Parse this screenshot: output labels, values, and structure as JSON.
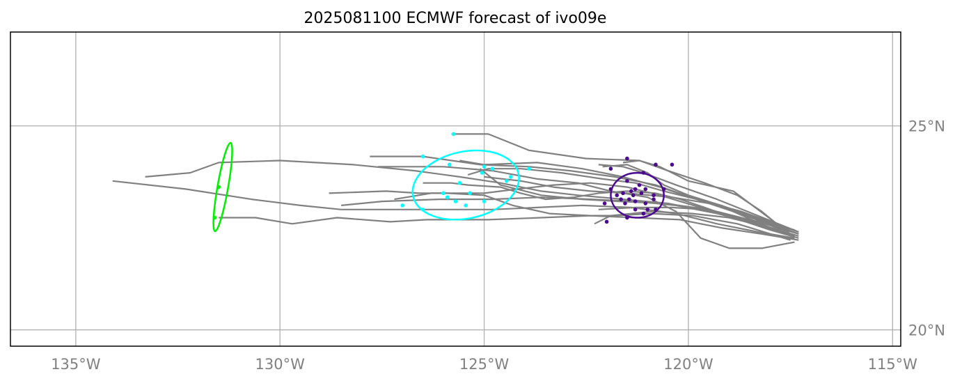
{
  "chart_data": {
    "type": "scatter",
    "title": "2025081100 ECMWF forecast of ivo09e",
    "xlabel": "",
    "ylabel": "",
    "xlim": [
      -136.6,
      -114.8
    ],
    "ylim": [
      19.6,
      27.3
    ],
    "grid": true,
    "x_ticks": [
      {
        "value": -135,
        "label": "135°W"
      },
      {
        "value": -130,
        "label": "130°W"
      },
      {
        "value": -125,
        "label": "125°W"
      },
      {
        "value": -120,
        "label": "120°W"
      },
      {
        "value": -115,
        "label": "115°W"
      }
    ],
    "y_ticks": [
      {
        "value": 25,
        "label": "25°N"
      },
      {
        "value": 20,
        "label": "20°N"
      }
    ],
    "colors": {
      "track": "#808080",
      "day1": "#4b0a8f",
      "day2": "#00ffff",
      "day3": "#00ee00",
      "grid": "#b0b0b0",
      "frame": "#000000"
    },
    "ellipses": [
      {
        "cx": -121.25,
        "cy": 23.3,
        "rx": 0.65,
        "ry": 0.55,
        "angle": 0,
        "color": "#4b0a8f"
      },
      {
        "cx": -125.45,
        "cy": 23.55,
        "rx": 1.32,
        "ry": 0.82,
        "angle": -12,
        "color": "#00ffff"
      },
      {
        "cx": -131.4,
        "cy": 23.5,
        "rx": 0.13,
        "ry": 1.1,
        "angle": 10,
        "color": "#00ee00"
      }
    ],
    "tracks": [
      [
        [
          -117.3,
          22.35
        ],
        [
          -117.8,
          22.5
        ],
        [
          -118.5,
          22.7
        ],
        [
          -119.5,
          22.9
        ],
        [
          -120.5,
          23.1
        ],
        [
          -121.6,
          23.2
        ],
        [
          -122.7,
          23.3
        ],
        [
          -123.6,
          23.4
        ],
        [
          -124.6,
          23.6
        ],
        [
          -125.6,
          23.75
        ],
        [
          -126.7,
          23.9
        ],
        [
          -128.2,
          24.05
        ],
        [
          -130.0,
          24.15
        ],
        [
          -131.5,
          24.1
        ],
        [
          -132.2,
          23.85
        ],
        [
          -133.3,
          23.75
        ]
      ],
      [
        [
          -117.4,
          22.25
        ],
        [
          -118.3,
          22.4
        ],
        [
          -119.3,
          22.6
        ],
        [
          -120.3,
          22.85
        ],
        [
          -121.4,
          23.0
        ],
        [
          -122.6,
          23.05
        ],
        [
          -123.7,
          23.0
        ],
        [
          -124.8,
          22.95
        ],
        [
          -126.0,
          22.95
        ],
        [
          -127.3,
          22.95
        ],
        [
          -128.5,
          22.95
        ],
        [
          -129.5,
          23.05
        ],
        [
          -130.7,
          23.2
        ],
        [
          -132.3,
          23.45
        ],
        [
          -134.1,
          23.65
        ]
      ],
      [
        [
          -117.3,
          22.2
        ],
        [
          -118.2,
          22.35
        ],
        [
          -119.2,
          22.5
        ],
        [
          -120.2,
          22.7
        ],
        [
          -121.3,
          22.75
        ],
        [
          -122.4,
          22.8
        ],
        [
          -123.6,
          22.75
        ],
        [
          -124.9,
          22.7
        ],
        [
          -126.4,
          22.7
        ],
        [
          -127.3,
          22.65
        ],
        [
          -128.6,
          22.75
        ],
        [
          -129.7,
          22.6
        ],
        [
          -130.6,
          22.75
        ],
        [
          -131.5,
          22.75
        ]
      ],
      [
        [
          -117.4,
          22.3
        ],
        [
          -118.0,
          22.5
        ],
        [
          -118.9,
          22.9
        ],
        [
          -119.8,
          23.2
        ],
        [
          -120.8,
          23.55
        ],
        [
          -121.8,
          23.75
        ],
        [
          -122.9,
          23.9
        ],
        [
          -123.9,
          24.0
        ],
        [
          -125.1,
          24.05
        ],
        [
          -126.5,
          24.25
        ],
        [
          -127.8,
          24.25
        ]
      ],
      [
        [
          -117.6,
          22.4
        ],
        [
          -118.2,
          22.9
        ],
        [
          -118.8,
          23.3
        ],
        [
          -119.6,
          23.6
        ],
        [
          -120.5,
          23.9
        ],
        [
          -121.2,
          24.15
        ],
        [
          -122.5,
          24.2
        ],
        [
          -123.9,
          24.4
        ],
        [
          -124.9,
          24.8
        ],
        [
          -125.8,
          24.8
        ]
      ],
      [
        [
          -117.4,
          22.15
        ],
        [
          -118.2,
          22.0
        ],
        [
          -119.0,
          22.0
        ],
        [
          -119.7,
          22.25
        ],
        [
          -120.3,
          22.9
        ],
        [
          -121.0,
          23.25
        ],
        [
          -121.9,
          23.4
        ],
        [
          -122.7,
          23.6
        ],
        [
          -123.7,
          23.7
        ],
        [
          -124.8,
          23.9
        ],
        [
          -126.0,
          24.0
        ],
        [
          -127.6,
          24.0
        ]
      ],
      [
        [
          -117.5,
          22.2
        ],
        [
          -118.8,
          22.6
        ],
        [
          -119.9,
          22.8
        ],
        [
          -120.9,
          22.85
        ],
        [
          -121.8,
          22.8
        ],
        [
          -122.4,
          22.8
        ],
        [
          -123.4,
          22.85
        ],
        [
          -124.3,
          23.05
        ],
        [
          -125.0,
          23.3
        ],
        [
          -125.9,
          23.35
        ],
        [
          -126.6,
          23.35
        ],
        [
          -127.4,
          23.4
        ],
        [
          -128.8,
          23.35
        ]
      ],
      [
        [
          -117.3,
          22.3
        ],
        [
          -118.3,
          22.6
        ],
        [
          -119.3,
          22.85
        ],
        [
          -120.3,
          23.05
        ],
        [
          -121.3,
          23.15
        ],
        [
          -122.4,
          23.2
        ],
        [
          -123.6,
          23.25
        ],
        [
          -124.8,
          23.2
        ],
        [
          -126.1,
          23.2
        ],
        [
          -127.5,
          23.15
        ],
        [
          -128.5,
          23.05
        ]
      ],
      [
        [
          -117.4,
          22.45
        ],
        [
          -118.5,
          22.7
        ],
        [
          -119.7,
          23.0
        ],
        [
          -120.7,
          23.3
        ],
        [
          -121.5,
          23.5
        ],
        [
          -122.4,
          23.6
        ],
        [
          -123.3,
          23.55
        ],
        [
          -124.2,
          23.45
        ],
        [
          -125.0,
          23.35
        ],
        [
          -126.3,
          23.35
        ],
        [
          -127.2,
          23.2
        ]
      ],
      [
        [
          -117.5,
          22.35
        ],
        [
          -118.9,
          23.4
        ],
        [
          -120.0,
          23.65
        ],
        [
          -120.7,
          24.0
        ],
        [
          -121.2,
          24.15
        ],
        [
          -121.6,
          24.1
        ]
      ],
      [
        [
          -117.3,
          22.4
        ],
        [
          -118.7,
          22.9
        ],
        [
          -119.8,
          23.2
        ],
        [
          -120.7,
          23.5
        ],
        [
          -121.6,
          23.75
        ],
        [
          -122.6,
          23.95
        ],
        [
          -123.7,
          24.1
        ],
        [
          -125.0,
          24.05
        ],
        [
          -125.6,
          24.15
        ]
      ],
      [
        [
          -117.3,
          22.35
        ],
        [
          -118.4,
          22.75
        ],
        [
          -119.2,
          23.05
        ],
        [
          -120.0,
          23.3
        ],
        [
          -120.6,
          23.55
        ],
        [
          -121.0,
          23.85
        ],
        [
          -121.5,
          24.05
        ],
        [
          -122.1,
          24.0
        ]
      ],
      [
        [
          -117.4,
          22.3
        ],
        [
          -118.2,
          22.55
        ],
        [
          -119.0,
          22.75
        ],
        [
          -119.9,
          22.85
        ],
        [
          -120.9,
          22.9
        ],
        [
          -121.9,
          22.8
        ],
        [
          -122.3,
          22.6
        ]
      ],
      [
        [
          -117.3,
          22.25
        ],
        [
          -118.0,
          22.45
        ],
        [
          -118.9,
          22.75
        ],
        [
          -119.6,
          23.0
        ],
        [
          -120.2,
          23.2
        ],
        [
          -120.8,
          23.35
        ],
        [
          -121.5,
          23.4
        ],
        [
          -122.2,
          23.35
        ],
        [
          -122.8,
          23.25
        ],
        [
          -123.5,
          23.2
        ],
        [
          -124.1,
          23.35
        ],
        [
          -124.6,
          23.5
        ],
        [
          -125.4,
          23.55
        ],
        [
          -125.8,
          23.6
        ],
        [
          -126.5,
          23.6
        ]
      ],
      [
        [
          -117.4,
          22.3
        ],
        [
          -118.2,
          22.65
        ],
        [
          -119.0,
          22.95
        ],
        [
          -119.8,
          23.2
        ],
        [
          -120.6,
          23.4
        ],
        [
          -121.3,
          23.6
        ],
        [
          -122.1,
          23.7
        ],
        [
          -123.1,
          23.85
        ],
        [
          -124.1,
          23.95
        ],
        [
          -124.9,
          23.95
        ],
        [
          -125.4,
          23.8
        ]
      ],
      [
        [
          -117.3,
          22.35
        ],
        [
          -118.2,
          22.7
        ],
        [
          -119.2,
          23.05
        ],
        [
          -120.4,
          23.25
        ],
        [
          -121.5,
          23.35
        ],
        [
          -122.4,
          23.4
        ],
        [
          -123.3,
          23.5
        ],
        [
          -124.1,
          23.65
        ],
        [
          -125.0,
          23.75
        ]
      ],
      [
        [
          -117.4,
          22.3
        ],
        [
          -118.4,
          22.65
        ],
        [
          -119.5,
          22.95
        ],
        [
          -120.6,
          23.1
        ],
        [
          -121.7,
          23.15
        ],
        [
          -122.6,
          23.2
        ],
        [
          -123.6,
          23.3
        ],
        [
          -124.6,
          23.55
        ],
        [
          -125.1,
          23.95
        ]
      ],
      [
        [
          -117.3,
          22.4
        ],
        [
          -118.3,
          22.8
        ],
        [
          -119.3,
          23.2
        ],
        [
          -120.3,
          23.55
        ],
        [
          -121.1,
          23.85
        ],
        [
          -121.6,
          24.0
        ],
        [
          -122.2,
          24.05
        ]
      ],
      [
        [
          -117.4,
          22.3
        ],
        [
          -118.0,
          22.5
        ],
        [
          -118.8,
          22.75
        ],
        [
          -119.6,
          22.95
        ],
        [
          -120.4,
          23.0
        ],
        [
          -121.3,
          23.0
        ],
        [
          -122.2,
          22.95
        ]
      ]
    ],
    "points_day1": [
      [
        -121.5,
        24.2
      ],
      [
        -121.9,
        23.95
      ],
      [
        -121.1,
        23.85
      ],
      [
        -120.8,
        24.05
      ],
      [
        -120.4,
        24.05
      ],
      [
        -121.5,
        23.65
      ],
      [
        -121.2,
        23.55
      ],
      [
        -121.05,
        23.45
      ],
      [
        -120.6,
        23.45
      ],
      [
        -121.9,
        23.45
      ],
      [
        -121.4,
        23.4
      ],
      [
        -121.3,
        23.45
      ],
      [
        -121.6,
        23.35
      ],
      [
        -121.75,
        23.3
      ],
      [
        -121.35,
        23.3
      ],
      [
        -121.15,
        23.35
      ],
      [
        -120.85,
        23.3
      ],
      [
        -121.45,
        23.2
      ],
      [
        -121.3,
        23.15
      ],
      [
        -121.55,
        23.1
      ],
      [
        -121.05,
        23.1
      ],
      [
        -120.85,
        23.2
      ],
      [
        -121.65,
        23.2
      ],
      [
        -122.05,
        23.1
      ],
      [
        -121.3,
        22.95
      ],
      [
        -121.0,
        22.95
      ],
      [
        -120.8,
        22.95
      ],
      [
        -121.1,
        22.85
      ],
      [
        -121.5,
        22.75
      ],
      [
        -122.0,
        22.65
      ]
    ],
    "points_day2": [
      [
        -125.75,
        24.8
      ],
      [
        -126.5,
        24.25
      ],
      [
        -125.85,
        24.05
      ],
      [
        -125.0,
        24.0
      ],
      [
        -124.8,
        23.95
      ],
      [
        -123.9,
        23.95
      ],
      [
        -125.05,
        23.85
      ],
      [
        -124.35,
        23.75
      ],
      [
        -125.6,
        23.6
      ],
      [
        -124.45,
        23.65
      ],
      [
        -126.0,
        23.35
      ],
      [
        -125.35,
        23.35
      ],
      [
        -125.9,
        23.25
      ],
      [
        -125.7,
        23.15
      ],
      [
        -125.0,
        23.15
      ],
      [
        -125.45,
        23.05
      ],
      [
        -127.0,
        23.05
      ],
      [
        -126.5,
        22.95
      ]
    ],
    "points_day3": [
      [
        -131.5,
        23.5
      ],
      [
        -131.6,
        22.75
      ]
    ]
  }
}
